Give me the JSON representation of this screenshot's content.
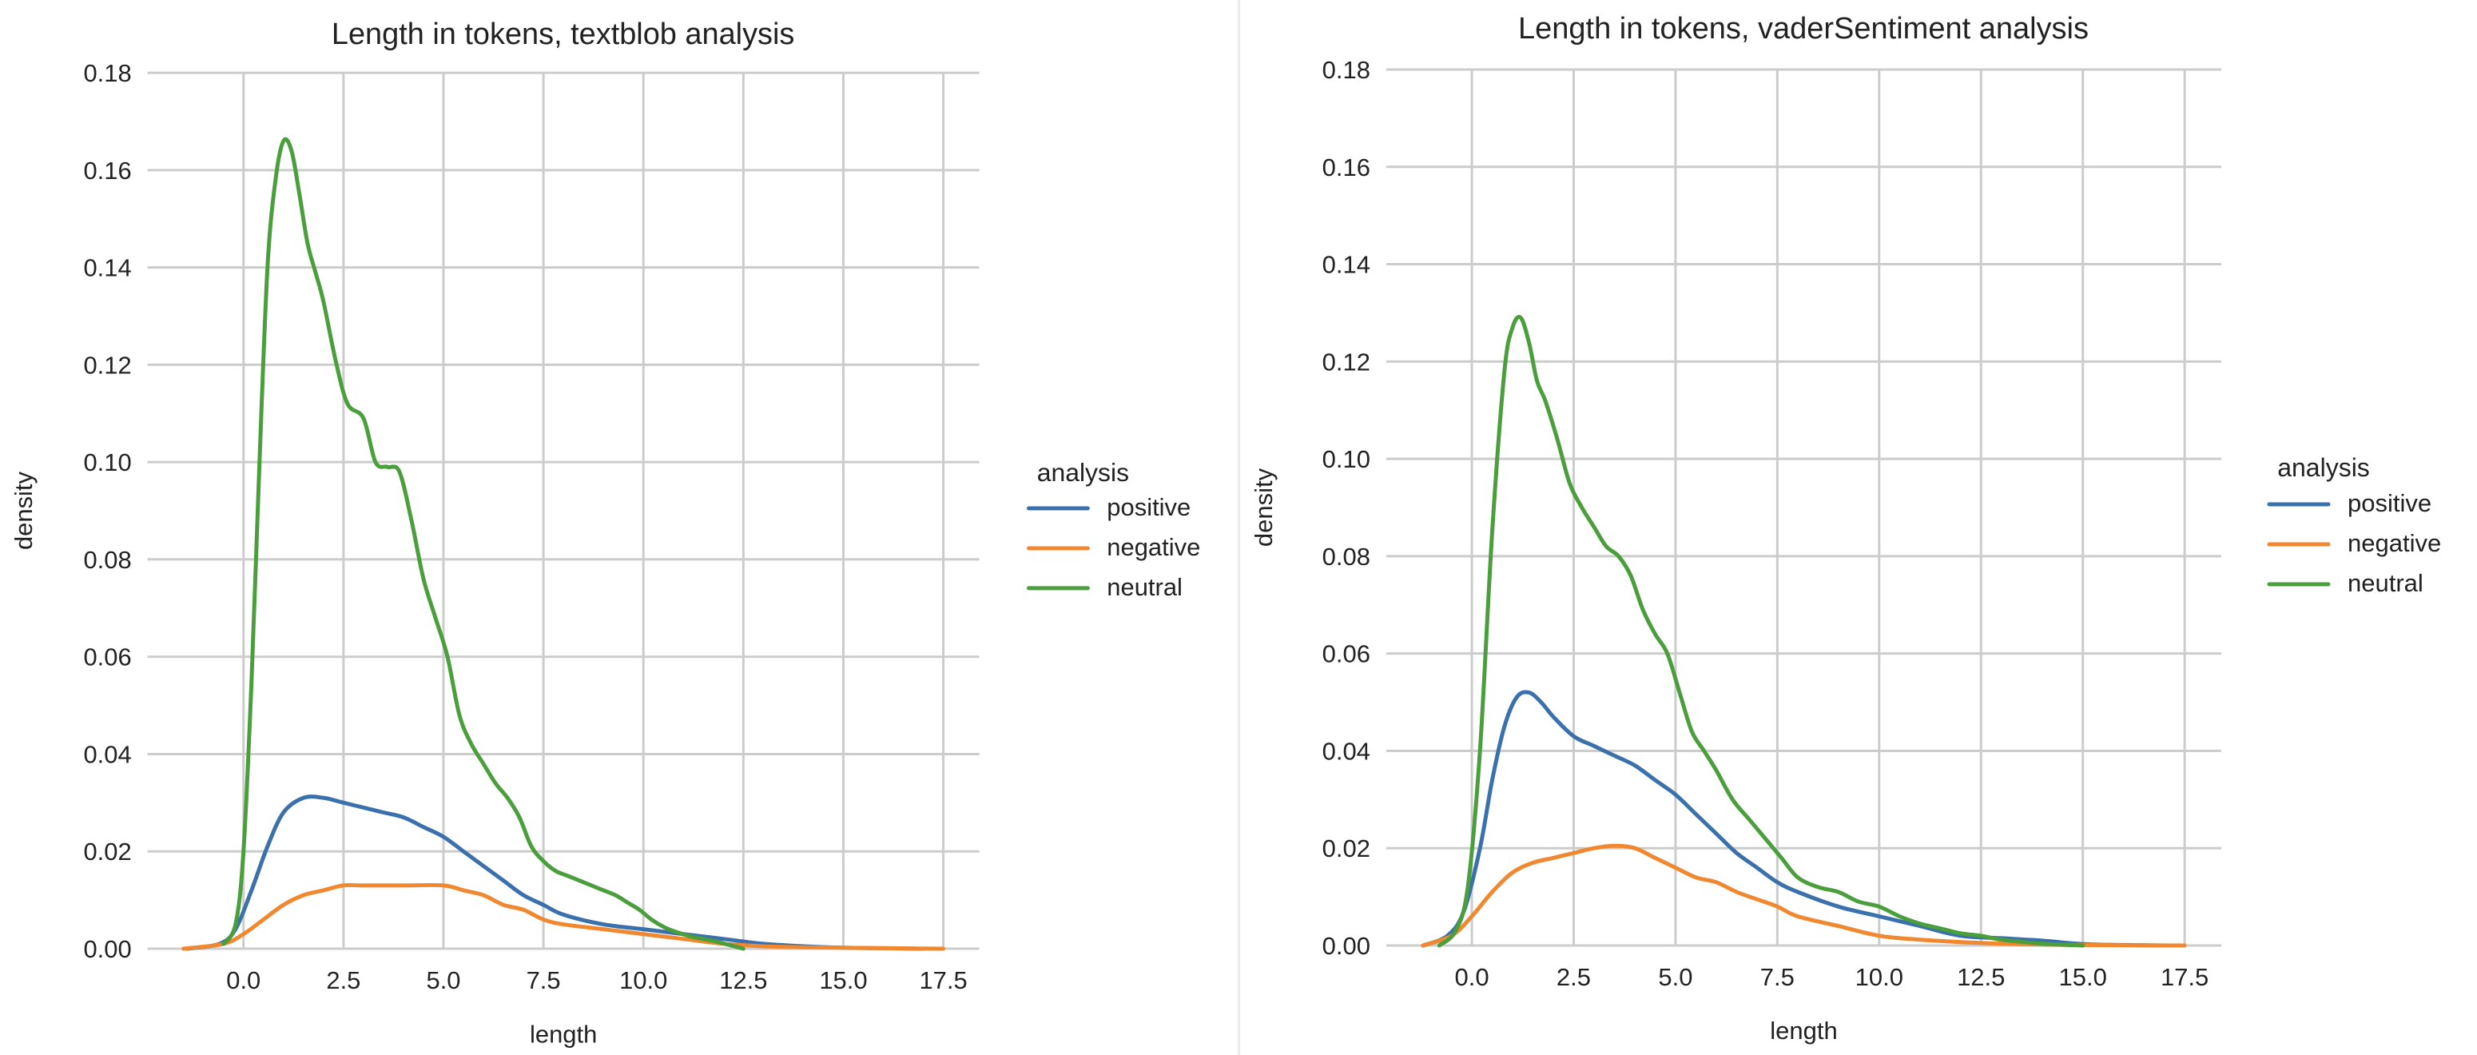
{
  "chart_data": [
    {
      "type": "line",
      "title": "Length in tokens, textblob analysis",
      "xlabel": "length",
      "ylabel": "density",
      "xlim": [
        -2.4,
        18.4
      ],
      "ylim": [
        0,
        0.18
      ],
      "xticks": [
        0.0,
        2.5,
        5.0,
        7.5,
        10.0,
        12.5,
        15.0,
        17.5
      ],
      "xtick_labels": [
        "0.0",
        "2.5",
        "5.0",
        "7.5",
        "10.0",
        "12.5",
        "15.0",
        "17.5"
      ],
      "yticks": [
        0.0,
        0.02,
        0.04,
        0.06,
        0.08,
        0.1,
        0.12,
        0.14,
        0.16,
        0.18
      ],
      "ytick_labels": [
        "0.00",
        "0.02",
        "0.04",
        "0.06",
        "0.08",
        "0.10",
        "0.12",
        "0.14",
        "0.16",
        "0.18"
      ],
      "grid": true,
      "legend": {
        "title": "analysis",
        "placement": "right"
      },
      "series": [
        {
          "name": "positive",
          "color": "#3a70ac",
          "x": [
            -1.4,
            -0.6,
            -0.2,
            0.2,
            0.6,
            1.0,
            1.5,
            2.0,
            2.5,
            3.0,
            3.5,
            4.0,
            4.5,
            5.0,
            5.5,
            6.0,
            6.5,
            7.0,
            7.5,
            8.0,
            9.0,
            10.0,
            11.0,
            12.0,
            13.0,
            14.0,
            15.0,
            16.0,
            17.0
          ],
          "y": [
            0.0,
            0.001,
            0.004,
            0.012,
            0.021,
            0.028,
            0.031,
            0.031,
            0.03,
            0.029,
            0.028,
            0.027,
            0.025,
            0.023,
            0.02,
            0.017,
            0.014,
            0.011,
            0.009,
            0.007,
            0.005,
            0.004,
            0.003,
            0.002,
            0.001,
            0.0005,
            0.0002,
            0.0001,
            0.0
          ]
        },
        {
          "name": "negative",
          "color": "#f08830",
          "x": [
            -1.5,
            -0.5,
            0.0,
            0.5,
            1.0,
            1.5,
            2.0,
            2.5,
            3.0,
            4.0,
            5.0,
            5.5,
            6.0,
            6.5,
            7.0,
            7.5,
            8.0,
            9.0,
            10.0,
            11.0,
            12.0,
            13.0,
            14.0,
            15.0,
            16.0,
            17.5
          ],
          "y": [
            0.0,
            0.001,
            0.003,
            0.006,
            0.009,
            0.011,
            0.012,
            0.013,
            0.013,
            0.013,
            0.013,
            0.012,
            0.011,
            0.009,
            0.008,
            0.006,
            0.005,
            0.004,
            0.003,
            0.002,
            0.001,
            0.0005,
            0.0003,
            0.0002,
            0.0001,
            0.0
          ]
        },
        {
          "name": "neutral",
          "color": "#4a9e3c",
          "x": [
            -0.5,
            -0.2,
            0.0,
            0.2,
            0.4,
            0.6,
            0.8,
            1.0,
            1.2,
            1.4,
            1.6,
            1.8,
            2.0,
            2.3,
            2.6,
            3.0,
            3.3,
            3.6,
            3.9,
            4.2,
            4.5,
            4.8,
            5.1,
            5.4,
            5.7,
            6.0,
            6.3,
            6.6,
            6.9,
            7.2,
            7.5,
            7.8,
            8.1,
            8.4,
            8.7,
            9.0,
            9.3,
            9.6,
            9.9,
            10.2,
            10.5,
            10.8,
            11.2,
            11.8,
            12.5
          ],
          "y": [
            0.001,
            0.005,
            0.02,
            0.055,
            0.1,
            0.14,
            0.158,
            0.166,
            0.164,
            0.155,
            0.145,
            0.139,
            0.133,
            0.121,
            0.112,
            0.109,
            0.1,
            0.099,
            0.098,
            0.088,
            0.076,
            0.068,
            0.06,
            0.048,
            0.042,
            0.038,
            0.034,
            0.031,
            0.027,
            0.021,
            0.018,
            0.016,
            0.015,
            0.014,
            0.013,
            0.012,
            0.011,
            0.0095,
            0.008,
            0.006,
            0.0045,
            0.0035,
            0.0025,
            0.0015,
            0.0
          ]
        }
      ]
    },
    {
      "type": "line",
      "title": "Length in tokens, vaderSentiment analysis",
      "xlabel": "length",
      "ylabel": "density",
      "xlim": [
        -2.1,
        18.4
      ],
      "ylim": [
        0,
        0.18
      ],
      "xticks": [
        0.0,
        2.5,
        5.0,
        7.5,
        10.0,
        12.5,
        15.0,
        17.5
      ],
      "xtick_labels": [
        "0.0",
        "2.5",
        "5.0",
        "7.5",
        "10.0",
        "12.5",
        "15.0",
        "17.5"
      ],
      "yticks": [
        0.0,
        0.02,
        0.04,
        0.06,
        0.08,
        0.1,
        0.12,
        0.14,
        0.16,
        0.18
      ],
      "ytick_labels": [
        "0.00",
        "0.02",
        "0.04",
        "0.06",
        "0.08",
        "0.10",
        "0.12",
        "0.14",
        "0.16",
        "0.18"
      ],
      "grid": true,
      "legend": {
        "title": "analysis",
        "placement": "right"
      },
      "series": [
        {
          "name": "positive",
          "color": "#3a70ac",
          "x": [
            -1.2,
            -0.6,
            -0.2,
            0.2,
            0.5,
            0.8,
            1.1,
            1.4,
            1.7,
            2.0,
            2.5,
            3.0,
            3.5,
            4.0,
            4.5,
            5.0,
            5.5,
            6.0,
            6.5,
            7.0,
            7.5,
            8.0,
            9.0,
            10.0,
            11.0,
            12.0,
            13.0,
            14.0,
            15.0,
            16.0,
            17.0
          ],
          "y": [
            0.0,
            0.002,
            0.007,
            0.02,
            0.034,
            0.045,
            0.051,
            0.052,
            0.05,
            0.047,
            0.043,
            0.041,
            0.039,
            0.037,
            0.034,
            0.031,
            0.027,
            0.023,
            0.019,
            0.016,
            0.013,
            0.011,
            0.008,
            0.006,
            0.004,
            0.002,
            0.0015,
            0.001,
            0.0003,
            0.0001,
            0.0
          ]
        },
        {
          "name": "negative",
          "color": "#f08830",
          "x": [
            -1.2,
            -0.5,
            0.0,
            0.5,
            1.0,
            1.5,
            2.0,
            2.5,
            3.0,
            3.5,
            4.0,
            4.5,
            5.0,
            5.5,
            6.0,
            6.5,
            7.0,
            7.5,
            8.0,
            9.0,
            10.0,
            11.0,
            12.0,
            13.0,
            14.0,
            15.0,
            16.0,
            17.5
          ],
          "y": [
            0.0,
            0.002,
            0.006,
            0.011,
            0.015,
            0.017,
            0.018,
            0.019,
            0.02,
            0.0205,
            0.02,
            0.018,
            0.016,
            0.014,
            0.013,
            0.011,
            0.0095,
            0.008,
            0.006,
            0.004,
            0.002,
            0.0012,
            0.0007,
            0.0004,
            0.0002,
            0.0001,
            5e-05,
            0.0
          ]
        },
        {
          "name": "neutral",
          "color": "#4a9e3c",
          "x": [
            -0.8,
            -0.4,
            -0.1,
            0.2,
            0.5,
            0.8,
            1.0,
            1.2,
            1.4,
            1.6,
            1.8,
            2.1,
            2.4,
            2.7,
            3.0,
            3.3,
            3.6,
            3.9,
            4.2,
            4.5,
            4.8,
            5.1,
            5.4,
            5.7,
            6.0,
            6.4,
            6.8,
            7.2,
            7.6,
            8.0,
            8.5,
            9.0,
            9.5,
            10.0,
            10.5,
            11.0,
            11.5,
            12.0,
            12.5,
            13.0,
            14.0,
            15.0
          ],
          "y": [
            0.0,
            0.003,
            0.012,
            0.04,
            0.085,
            0.118,
            0.127,
            0.129,
            0.124,
            0.116,
            0.112,
            0.104,
            0.095,
            0.09,
            0.086,
            0.082,
            0.08,
            0.076,
            0.069,
            0.064,
            0.06,
            0.052,
            0.044,
            0.04,
            0.036,
            0.03,
            0.026,
            0.022,
            0.018,
            0.014,
            0.012,
            0.011,
            0.009,
            0.008,
            0.006,
            0.0045,
            0.0035,
            0.0025,
            0.002,
            0.0012,
            0.0004,
            0.0
          ]
        }
      ]
    }
  ]
}
